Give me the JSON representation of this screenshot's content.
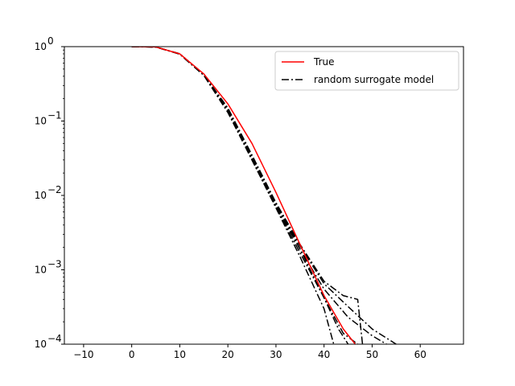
{
  "chart_data": {
    "type": "line",
    "title": "",
    "xlabel": "",
    "ylabel": "",
    "xlim": [
      -14,
      69
    ],
    "ylim": [
      0.0001,
      1
    ],
    "y_scale": "log",
    "grid": false,
    "legend_placement": "top-right",
    "x_ticks": [
      -10,
      0,
      10,
      20,
      30,
      40,
      50,
      60
    ],
    "x_tick_labels": [
      "−10",
      "0",
      "10",
      "20",
      "30",
      "40",
      "50",
      "60"
    ],
    "y_ticks": [
      0.0001,
      0.001,
      0.01,
      0.1,
      1
    ],
    "y_tick_labels": [
      {
        "base": "10",
        "exp": "−4"
      },
      {
        "base": "10",
        "exp": "−3"
      },
      {
        "base": "10",
        "exp": "−2"
      },
      {
        "base": "10",
        "exp": "−1"
      },
      {
        "base": "10",
        "exp": "0"
      }
    ],
    "series": [
      {
        "name": "True",
        "color": "#ff0000",
        "style": "solid",
        "x": [
          0,
          5,
          10,
          15,
          20,
          25,
          30,
          35,
          40,
          44,
          46.5
        ],
        "y": [
          1.0,
          0.99,
          0.8,
          0.43,
          0.17,
          0.05,
          0.011,
          0.0022,
          0.00045,
          0.00016,
          0.0001
        ]
      },
      {
        "name": "random surrogate model",
        "color": "#000000",
        "style": "dashdot",
        "x": [
          0,
          5,
          10,
          15,
          20,
          25,
          30,
          35,
          40,
          45,
          50,
          55
        ],
        "y": [
          1.0,
          0.99,
          0.8,
          0.42,
          0.14,
          0.032,
          0.0075,
          0.0021,
          0.00065,
          0.00032,
          0.00016,
          0.0001
        ]
      },
      {
        "color": "#000000",
        "style": "dashdot",
        "x": [
          0,
          5,
          10,
          15,
          20,
          25,
          30,
          35,
          40,
          43,
          45
        ],
        "y": [
          1.0,
          0.99,
          0.79,
          0.41,
          0.13,
          0.03,
          0.007,
          0.0017,
          0.00042,
          0.00016,
          0.0001
        ]
      },
      {
        "color": "#000000",
        "style": "dashdot",
        "x": [
          0,
          5,
          10,
          15,
          20,
          25,
          30,
          35,
          40,
          44,
          47,
          48
        ],
        "y": [
          1.0,
          0.99,
          0.8,
          0.42,
          0.15,
          0.035,
          0.008,
          0.0022,
          0.0007,
          0.00045,
          0.0004,
          0.0001
        ]
      },
      {
        "color": "#000000",
        "style": "dashdot",
        "x": [
          0,
          5,
          10,
          15,
          20,
          25,
          30,
          35,
          40,
          44,
          47
        ],
        "y": [
          1.0,
          0.99,
          0.8,
          0.42,
          0.14,
          0.033,
          0.0078,
          0.0019,
          0.00042,
          0.00014,
          0.0001
        ]
      },
      {
        "color": "#000000",
        "style": "dashdot",
        "x": [
          0,
          5,
          10,
          15,
          20,
          25,
          30,
          35,
          40,
          45,
          50,
          53
        ],
        "y": [
          1.0,
          0.99,
          0.8,
          0.42,
          0.14,
          0.031,
          0.0072,
          0.0019,
          0.00055,
          0.00023,
          0.00013,
          0.0001
        ]
      },
      {
        "color": "#000000",
        "style": "dashdot",
        "x": [
          0,
          5,
          10,
          15,
          20,
          25,
          30,
          35,
          40,
          42
        ],
        "y": [
          1.0,
          0.99,
          0.8,
          0.42,
          0.14,
          0.03,
          0.0068,
          0.0015,
          0.0003,
          0.0001
        ]
      }
    ]
  }
}
